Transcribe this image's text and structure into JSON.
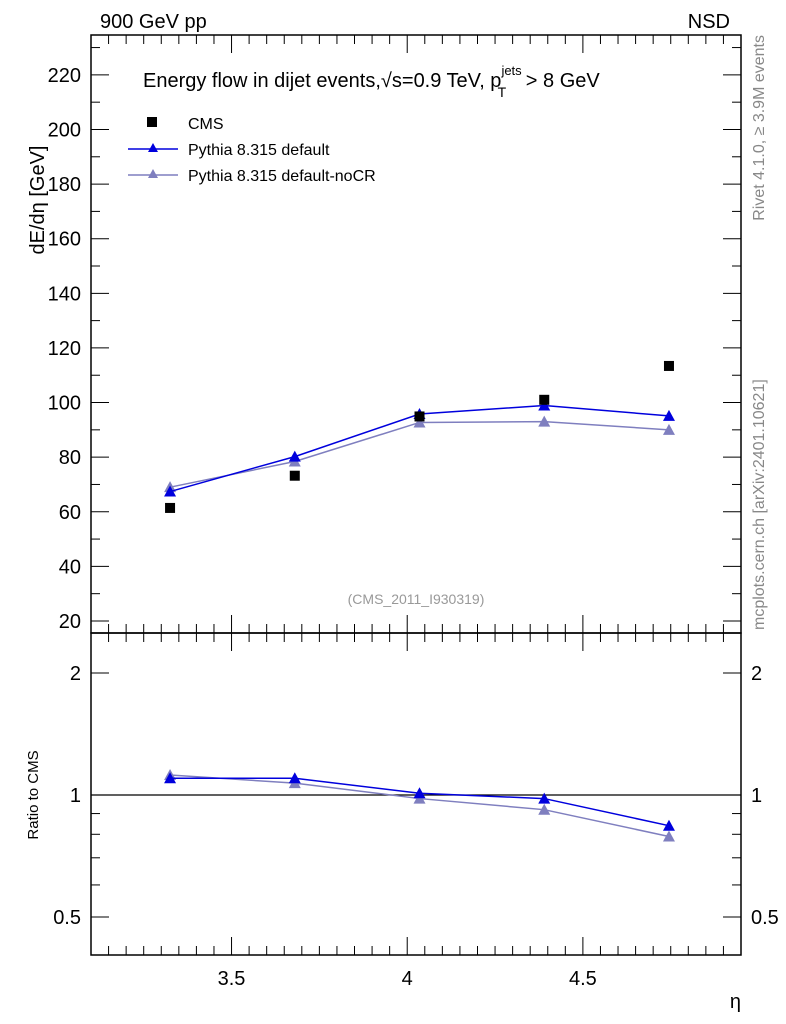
{
  "chart_data": {
    "type": "line",
    "header_left": "900 GeV pp",
    "header_right": "NSD",
    "title_main": "Energy flow in dijet events,",
    "title_sqrt": "√s=0.9 TeV, p",
    "title_sub": "T",
    "title_sup": "jets",
    "title_tail": " > 8 GeV",
    "ylabel": "dE/dη [GeV]",
    "ratio_ylabel": "Ratio to CMS",
    "xlabel": "η",
    "analysis_label": "(CMS_2011_I930319)",
    "side_label_top": "Rivet 4.1.0, ≥ 3.9M events",
    "side_label_bottom": "mcplots.cern.ch [arXiv:2401.10621]",
    "xlim": [
      3.1,
      4.95
    ],
    "ylim": [
      15.6,
      234.6
    ],
    "ratio_ylim": [
      0.403,
      2.51
    ],
    "ratio_scale": "log",
    "x_ticks": [
      "3.5",
      "4",
      "4.5"
    ],
    "x_tick_values": [
      3.5,
      4.0,
      4.5
    ],
    "y_ticks": [
      "20",
      "40",
      "60",
      "80",
      "100",
      "120",
      "140",
      "160",
      "180",
      "200",
      "220"
    ],
    "y_tick_values": [
      20,
      40,
      60,
      80,
      100,
      120,
      140,
      160,
      180,
      200,
      220
    ],
    "ratio_ticks": [
      "0.5",
      "1",
      "2"
    ],
    "ratio_tick_values": [
      0.5,
      1,
      2
    ],
    "x": [
      3.325,
      3.68,
      4.035,
      4.39,
      4.745
    ],
    "legend_position": "top-left",
    "series": [
      {
        "name": "CMS",
        "marker": "square",
        "color": "#000000",
        "values": [
          61.4,
          73.2,
          94.9,
          101.0,
          113.4
        ]
      },
      {
        "name": "Pythia 8.315 default",
        "marker": "triangle",
        "color": "#0000dd",
        "values": [
          67.4,
          80.2,
          95.8,
          98.9,
          95.1
        ],
        "ratio": [
          1.1,
          1.1,
          1.01,
          0.98,
          0.84
        ]
      },
      {
        "name": "Pythia 8.315 default-noCR",
        "marker": "triangle",
        "color": "#7f7fbf",
        "values": [
          69.0,
          78.4,
          92.7,
          93.0,
          90.0
        ],
        "ratio": [
          1.12,
          1.07,
          0.98,
          0.92,
          0.79
        ]
      }
    ]
  }
}
